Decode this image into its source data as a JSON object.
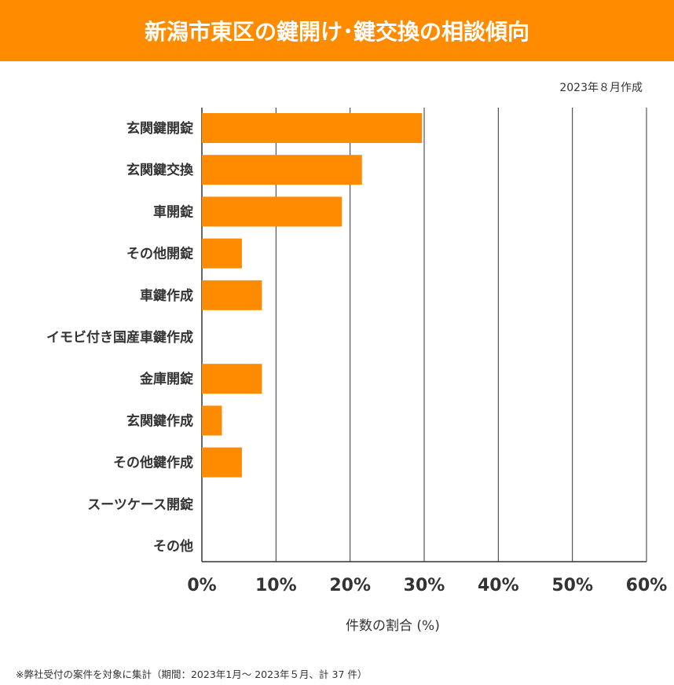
{
  "chart_data": {
    "type": "bar",
    "orientation": "horizontal",
    "title": "新潟市東区の鍵開け･鍵交換の相談傾向",
    "subtitle": "2023年８月作成",
    "xlabel": "件数の割合 (%)",
    "note": "※弊社受付の案件を対象に集計（期間：2023年1月～ 2023年５月、計 37 件）",
    "categories": [
      "玄関鍵開錠",
      "玄関鍵交換",
      "車開錠",
      "その他開錠",
      "車鍵作成",
      "イモビ付き国産車鍵作成",
      "金庫開錠",
      "玄関鍵作成",
      "その他鍵作成",
      "スーツケース開錠",
      "その他"
    ],
    "values": [
      29.7,
      21.6,
      18.9,
      5.4,
      8.1,
      0,
      8.1,
      2.7,
      5.4,
      0,
      0
    ],
    "xlim": [
      0,
      60
    ],
    "xticks": [
      "0%",
      "10%",
      "20%",
      "30%",
      "40%",
      "50%",
      "60%"
    ],
    "grid": true,
    "bar_color": "#ff8c00"
  }
}
